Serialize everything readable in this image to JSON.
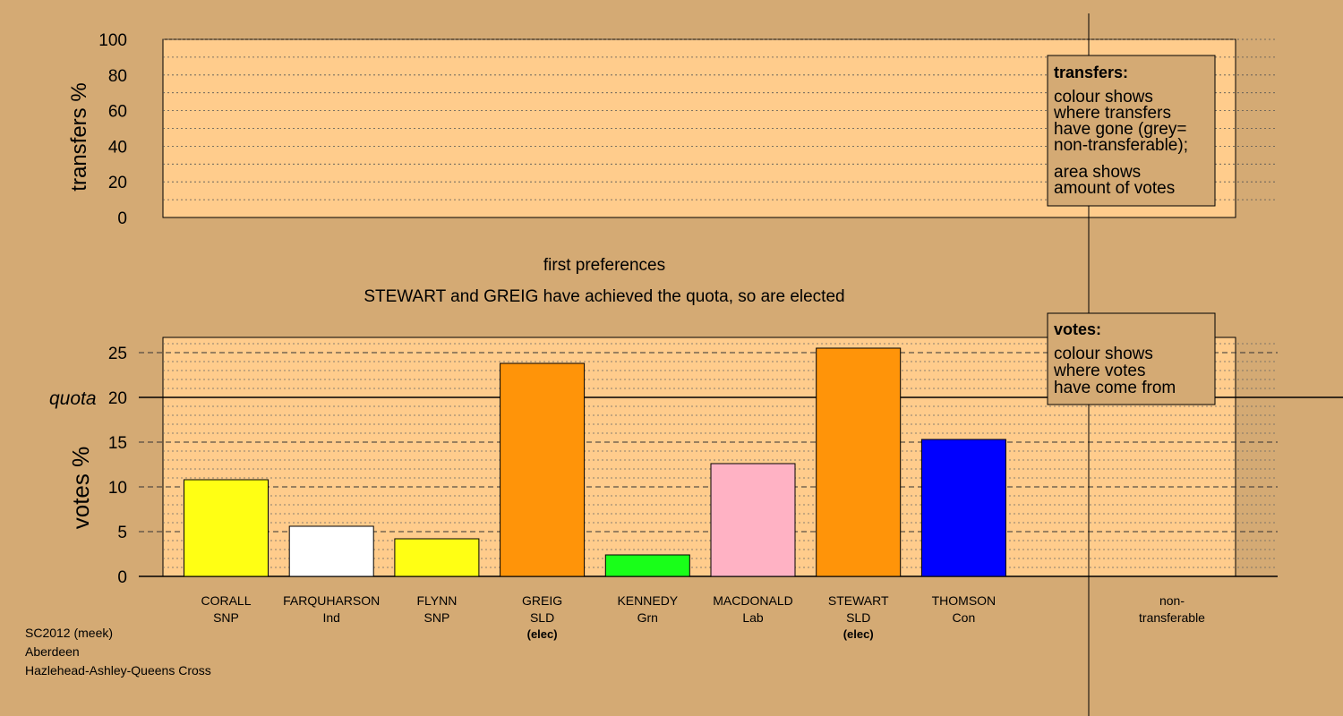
{
  "colors": {
    "background": "#d4aa74",
    "plot_background": "#ffcc8c",
    "legend_background": "#d4aa74"
  },
  "chart_data": [
    {
      "type": "bar",
      "panel": "transfers",
      "ylabel": "transfers %",
      "ylim": [
        0,
        100
      ],
      "ticks": [
        0,
        20,
        40,
        60,
        80,
        100
      ],
      "grid": true,
      "series": [],
      "legend": {
        "position": "top-right",
        "title": "transfers:",
        "lines": [
          "colour shows",
          "where transfers",
          "have gone (grey=",
          "non-transferable);"
        ],
        "lines2": [
          "area shows",
          "amount of votes"
        ]
      }
    },
    {
      "type": "bar",
      "panel": "votes",
      "title": "first preferences",
      "subtitle": "STEWART and GREIG have achieved the quota, so are elected",
      "ylabel": "votes %",
      "ylim": [
        0,
        25
      ],
      "ticks": [
        0,
        5,
        10,
        15,
        20,
        25
      ],
      "quota": 20,
      "quota_label": "quota",
      "grid": true,
      "categories": [
        {
          "name": "CORALL",
          "party": "SNP",
          "elected": ""
        },
        {
          "name": "FARQUHARSON",
          "party": "Ind",
          "elected": ""
        },
        {
          "name": "FLYNN",
          "party": "SNP",
          "elected": ""
        },
        {
          "name": "GREIG",
          "party": "SLD",
          "elected": "(elec)"
        },
        {
          "name": "KENNEDY",
          "party": "Grn",
          "elected": ""
        },
        {
          "name": "MACDONALD",
          "party": "Lab",
          "elected": ""
        },
        {
          "name": "STEWART",
          "party": "SLD",
          "elected": "(elec)"
        },
        {
          "name": "THOMSON",
          "party": "Con",
          "elected": ""
        }
      ],
      "values": [
        10.8,
        5.6,
        4.2,
        23.8,
        2.4,
        12.6,
        25.5,
        15.3
      ],
      "bar_colors": [
        "#ffff14",
        "#ffffff",
        "#ffff14",
        "#ff9409",
        "#19ff19",
        "#ffb2c4",
        "#ff9409",
        "#0000ff"
      ],
      "nontransferable_label": [
        "non-",
        "transferable"
      ],
      "nontransferable_value": 0,
      "legend": {
        "position": "top-right",
        "title": "votes:",
        "lines": [
          "colour shows",
          "where votes",
          "have come from"
        ]
      }
    }
  ],
  "footer": {
    "lines": [
      "SC2012 (meek)",
      "Aberdeen",
      "Hazlehead-Ashley-Queens Cross"
    ]
  }
}
